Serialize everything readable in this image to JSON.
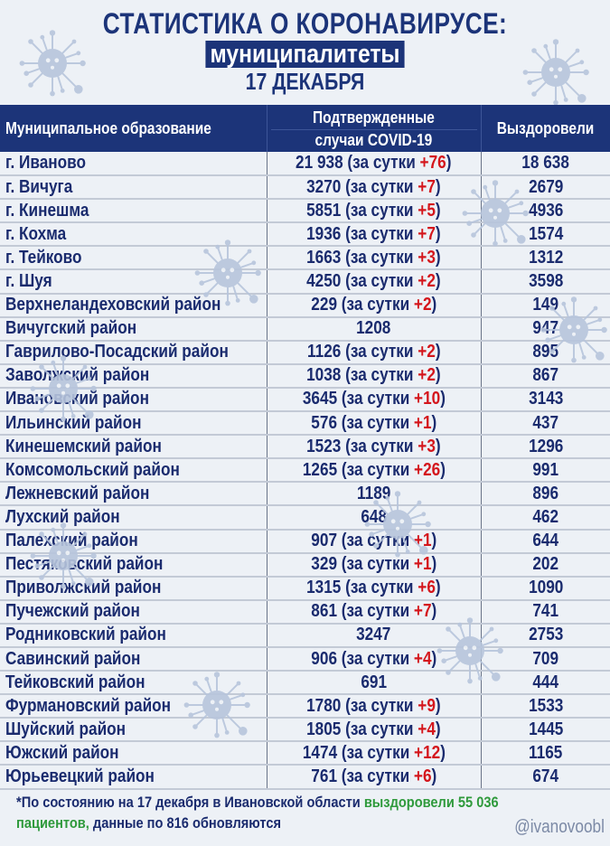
{
  "header": {
    "title": "СТАТИСТИКА О КОРОНАВИРУСЕ:",
    "subtitle": "муниципалитеты",
    "date": "17 ДЕКАБРЯ"
  },
  "colors": {
    "navy": "#1c3479",
    "increment_red": "#d4161c",
    "highlight_green": "#2f9a3c",
    "background": "#edf1f6"
  },
  "table": {
    "headers": {
      "municipality": "Муниципальное образование",
      "confirmed_line1": "Подтвержденные",
      "confirmed_line2": "случаи COVID-19",
      "recovered": "Выздоровели"
    },
    "daily_prefix": "(за сутки ",
    "daily_suffix": ")",
    "rows": [
      {
        "name": "г. Иваново",
        "confirmed": "21 938",
        "daily": "+76",
        "recovered": "18 638"
      },
      {
        "name": "г. Вичуга",
        "confirmed": "3270",
        "daily": "+7",
        "recovered": "2679"
      },
      {
        "name": "г. Кинешма",
        "confirmed": "5851",
        "daily": "+5",
        "recovered": "4936"
      },
      {
        "name": "г. Кохма",
        "confirmed": "1936",
        "daily": "+7",
        "recovered": "1574"
      },
      {
        "name": "г. Тейково",
        "confirmed": "1663",
        "daily": "+3",
        "recovered": "1312"
      },
      {
        "name": "г. Шуя",
        "confirmed": "4250",
        "daily": "+2",
        "recovered": "3598"
      },
      {
        "name": "Верхнеландеховский район",
        "confirmed": "229",
        "daily": "+2",
        "recovered": "149"
      },
      {
        "name": "Вичугский район",
        "confirmed": "1208",
        "daily": null,
        "recovered": "947"
      },
      {
        "name": "Гаврилово-Посадский район",
        "confirmed": "1126",
        "daily": "+2",
        "recovered": "895"
      },
      {
        "name": "Заволжский район",
        "confirmed": "1038",
        "daily": "+2",
        "recovered": "867"
      },
      {
        "name": "Ивановский район",
        "confirmed": "3645",
        "daily": "+10",
        "recovered": "3143"
      },
      {
        "name": "Ильинский район",
        "confirmed": "576",
        "daily": "+1",
        "recovered": "437"
      },
      {
        "name": "Кинешемский район",
        "confirmed": "1523",
        "daily": "+3",
        "recovered": "1296"
      },
      {
        "name": "Комсомольский район",
        "confirmed": "1265",
        "daily": "+26",
        "recovered": "991"
      },
      {
        "name": "Лежневский район",
        "confirmed": "1189",
        "daily": null,
        "recovered": "896"
      },
      {
        "name": "Лухский район",
        "confirmed": "648",
        "daily": null,
        "recovered": "462"
      },
      {
        "name": "Палехский район",
        "confirmed": "907",
        "daily": "+1",
        "recovered": "644"
      },
      {
        "name": "Пестяковский район",
        "confirmed": "329",
        "daily": "+1",
        "recovered": "202"
      },
      {
        "name": "Приволжский район",
        "confirmed": "1315",
        "daily": "+6",
        "recovered": "1090"
      },
      {
        "name": "Пучежский район",
        "confirmed": "861",
        "daily": "+7",
        "recovered": "741"
      },
      {
        "name": "Родниковский район",
        "confirmed": "3247",
        "daily": null,
        "recovered": "2753"
      },
      {
        "name": "Савинский район",
        "confirmed": "906",
        "daily": "+4",
        "recovered": "709"
      },
      {
        "name": "Тейковский район",
        "confirmed": "691",
        "daily": null,
        "recovered": "444"
      },
      {
        "name": "Фурмановский район",
        "confirmed": "1780",
        "daily": "+9",
        "recovered": "1533"
      },
      {
        "name": "Шуйский район",
        "confirmed": "1805",
        "daily": "+4",
        "recovered": "1445"
      },
      {
        "name": "Южский район",
        "confirmed": "1474",
        "daily": "+12",
        "recovered": "1165"
      },
      {
        "name": "Юрьевецкий район",
        "confirmed": "761",
        "daily": "+6",
        "recovered": "674"
      }
    ]
  },
  "footnote": {
    "part1": "*По состоянию на 17 декабря в Ивановской области ",
    "green1": "выздоровели 55 036",
    "green2": "пациентов,",
    "part2": " данные по 816 обновляются"
  },
  "social_handle": "@ivanovoobl",
  "icons": {
    "background_decoration": "virus-icon"
  }
}
